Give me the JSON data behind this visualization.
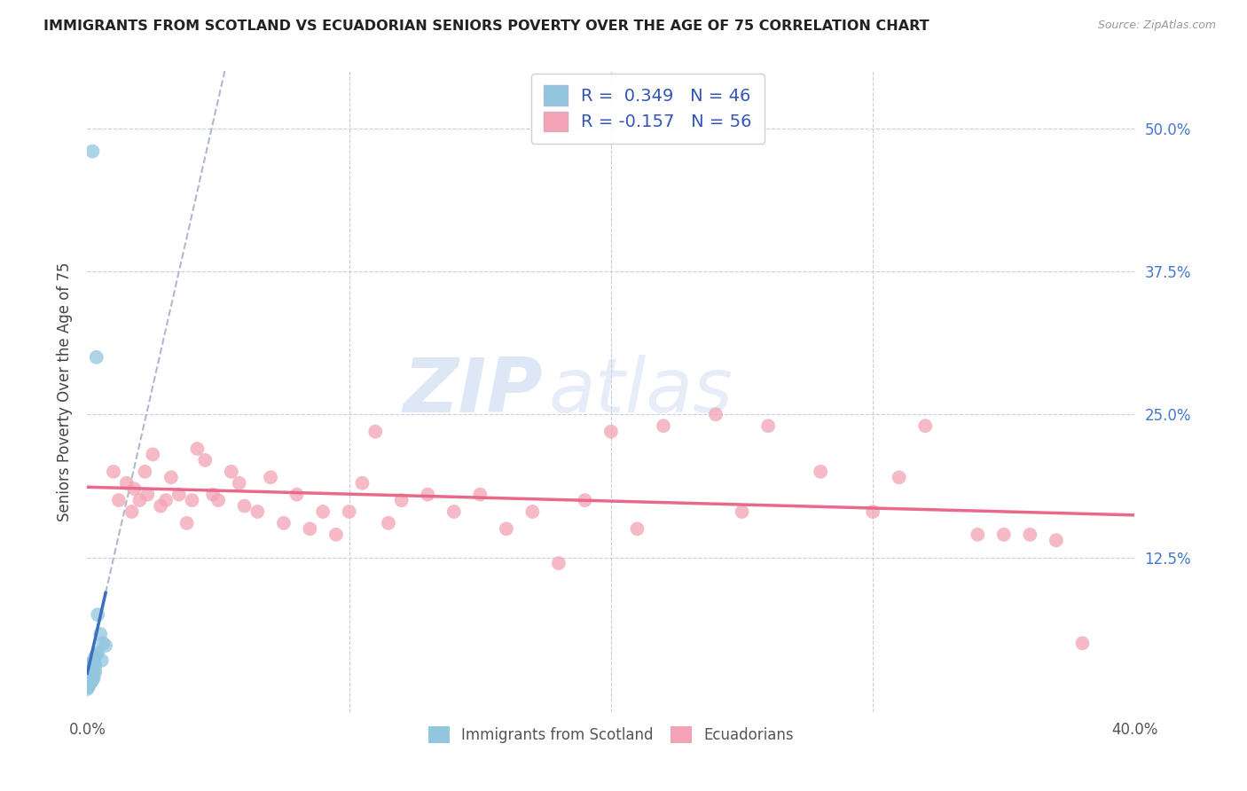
{
  "title": "IMMIGRANTS FROM SCOTLAND VS ECUADORIAN SENIORS POVERTY OVER THE AGE OF 75 CORRELATION CHART",
  "source": "Source: ZipAtlas.com",
  "ylabel": "Seniors Poverty Over the Age of 75",
  "legend_r_blue": "R =  0.349",
  "legend_n_blue": "N = 46",
  "legend_r_pink": "R = -0.157",
  "legend_n_pink": "N = 56",
  "color_blue": "#92c5de",
  "color_pink": "#f4a3b5",
  "color_blue_line": "#3a6fbf",
  "color_pink_line": "#e8698a",
  "color_dash": "#b0b8d0",
  "color_grid": "#c8cce0",
  "watermark_zip": "ZIP",
  "watermark_atlas": "atlas",
  "xlim": [
    0.0,
    0.4
  ],
  "ylim": [
    -0.01,
    0.55
  ],
  "blue_x": [
    0.0,
    0.0,
    0.0,
    0.0,
    0.0,
    0.0,
    0.0,
    0.0,
    0.0,
    0.0,
    0.0005,
    0.0005,
    0.0005,
    0.0005,
    0.0005,
    0.0005,
    0.0005,
    0.001,
    0.001,
    0.001,
    0.001,
    0.001,
    0.001,
    0.0015,
    0.0015,
    0.0015,
    0.0015,
    0.002,
    0.002,
    0.002,
    0.002,
    0.0025,
    0.0025,
    0.0025,
    0.003,
    0.003,
    0.003,
    0.0035,
    0.004,
    0.004,
    0.005,
    0.0055,
    0.006,
    0.007,
    0.0035,
    0.002
  ],
  "blue_y": [
    0.01,
    0.012,
    0.013,
    0.015,
    0.016,
    0.017,
    0.018,
    0.02,
    0.022,
    0.025,
    0.012,
    0.014,
    0.016,
    0.018,
    0.02,
    0.022,
    0.025,
    0.015,
    0.018,
    0.02,
    0.022,
    0.028,
    0.032,
    0.016,
    0.018,
    0.022,
    0.026,
    0.018,
    0.02,
    0.025,
    0.03,
    0.02,
    0.025,
    0.035,
    0.025,
    0.03,
    0.038,
    0.04,
    0.042,
    0.075,
    0.058,
    0.035,
    0.05,
    0.048,
    0.3,
    0.48
  ],
  "pink_x": [
    0.01,
    0.012,
    0.015,
    0.017,
    0.018,
    0.02,
    0.022,
    0.023,
    0.025,
    0.028,
    0.03,
    0.032,
    0.035,
    0.038,
    0.04,
    0.042,
    0.045,
    0.048,
    0.05,
    0.055,
    0.058,
    0.06,
    0.065,
    0.07,
    0.075,
    0.08,
    0.085,
    0.09,
    0.095,
    0.1,
    0.105,
    0.11,
    0.115,
    0.12,
    0.13,
    0.14,
    0.15,
    0.16,
    0.17,
    0.18,
    0.19,
    0.2,
    0.21,
    0.22,
    0.24,
    0.25,
    0.26,
    0.28,
    0.3,
    0.31,
    0.32,
    0.34,
    0.35,
    0.36,
    0.37,
    0.38
  ],
  "pink_y": [
    0.2,
    0.175,
    0.19,
    0.165,
    0.185,
    0.175,
    0.2,
    0.18,
    0.215,
    0.17,
    0.175,
    0.195,
    0.18,
    0.155,
    0.175,
    0.22,
    0.21,
    0.18,
    0.175,
    0.2,
    0.19,
    0.17,
    0.165,
    0.195,
    0.155,
    0.18,
    0.15,
    0.165,
    0.145,
    0.165,
    0.19,
    0.235,
    0.155,
    0.175,
    0.18,
    0.165,
    0.18,
    0.15,
    0.165,
    0.12,
    0.175,
    0.235,
    0.15,
    0.24,
    0.25,
    0.165,
    0.24,
    0.2,
    0.165,
    0.195,
    0.24,
    0.145,
    0.145,
    0.145,
    0.14,
    0.05
  ]
}
